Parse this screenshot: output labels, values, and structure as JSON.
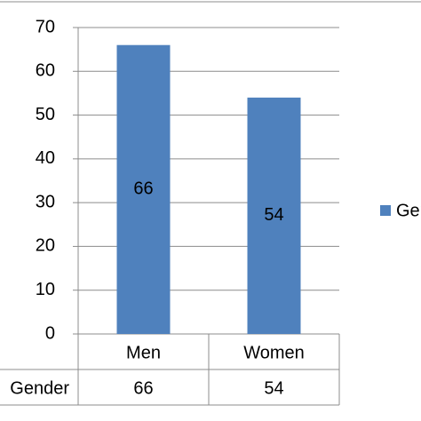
{
  "chart_data": {
    "type": "bar",
    "categories": [
      "Men",
      "Women"
    ],
    "series": [
      {
        "name": "Gender",
        "color": "#4f81bd",
        "values": [
          66,
          54
        ]
      }
    ],
    "ylim": [
      0,
      70
    ],
    "yticks": [
      0,
      10,
      20,
      30,
      40,
      50,
      60,
      70
    ],
    "grid": true,
    "legend": "right",
    "data_table": true
  }
}
